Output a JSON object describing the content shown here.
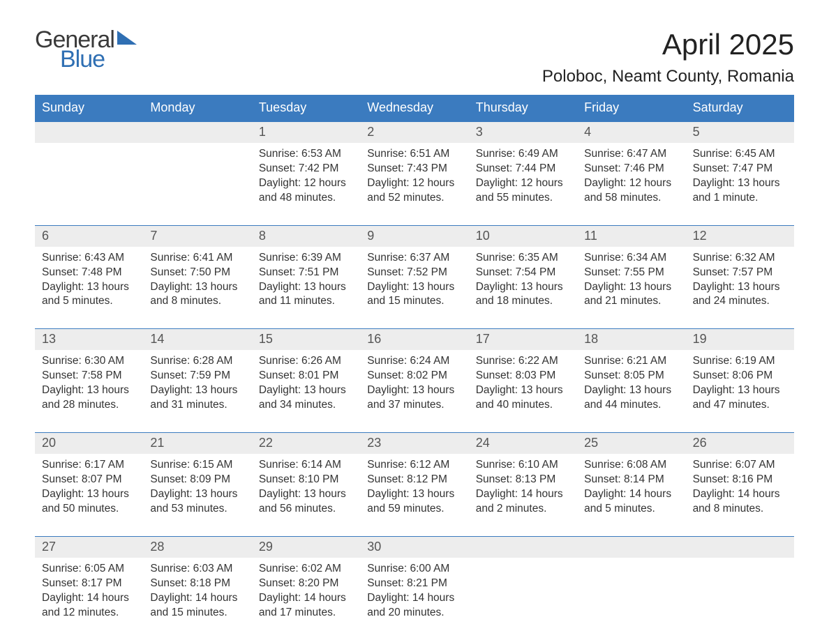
{
  "logo": {
    "line1": "General",
    "line2": "Blue",
    "triangle_color": "#2f6fb3"
  },
  "title": "April 2025",
  "location": "Poloboc, Neamt County, Romania",
  "colors": {
    "header_bg": "#3b7bbf",
    "header_text": "#ffffff",
    "daynum_bg": "#ededed",
    "week_border": "#3b7bbf",
    "body_text": "#333333",
    "title_text": "#222222"
  },
  "weekdays": [
    "Sunday",
    "Monday",
    "Tuesday",
    "Wednesday",
    "Thursday",
    "Friday",
    "Saturday"
  ],
  "weeks": [
    {
      "days": [
        {
          "num": "",
          "sunrise": "",
          "sunset": "",
          "daylight": ""
        },
        {
          "num": "",
          "sunrise": "",
          "sunset": "",
          "daylight": ""
        },
        {
          "num": "1",
          "sunrise": "Sunrise: 6:53 AM",
          "sunset": "Sunset: 7:42 PM",
          "daylight": "Daylight: 12 hours and 48 minutes."
        },
        {
          "num": "2",
          "sunrise": "Sunrise: 6:51 AM",
          "sunset": "Sunset: 7:43 PM",
          "daylight": "Daylight: 12 hours and 52 minutes."
        },
        {
          "num": "3",
          "sunrise": "Sunrise: 6:49 AM",
          "sunset": "Sunset: 7:44 PM",
          "daylight": "Daylight: 12 hours and 55 minutes."
        },
        {
          "num": "4",
          "sunrise": "Sunrise: 6:47 AM",
          "sunset": "Sunset: 7:46 PM",
          "daylight": "Daylight: 12 hours and 58 minutes."
        },
        {
          "num": "5",
          "sunrise": "Sunrise: 6:45 AM",
          "sunset": "Sunset: 7:47 PM",
          "daylight": "Daylight: 13 hours and 1 minute."
        }
      ]
    },
    {
      "days": [
        {
          "num": "6",
          "sunrise": "Sunrise: 6:43 AM",
          "sunset": "Sunset: 7:48 PM",
          "daylight": "Daylight: 13 hours and 5 minutes."
        },
        {
          "num": "7",
          "sunrise": "Sunrise: 6:41 AM",
          "sunset": "Sunset: 7:50 PM",
          "daylight": "Daylight: 13 hours and 8 minutes."
        },
        {
          "num": "8",
          "sunrise": "Sunrise: 6:39 AM",
          "sunset": "Sunset: 7:51 PM",
          "daylight": "Daylight: 13 hours and 11 minutes."
        },
        {
          "num": "9",
          "sunrise": "Sunrise: 6:37 AM",
          "sunset": "Sunset: 7:52 PM",
          "daylight": "Daylight: 13 hours and 15 minutes."
        },
        {
          "num": "10",
          "sunrise": "Sunrise: 6:35 AM",
          "sunset": "Sunset: 7:54 PM",
          "daylight": "Daylight: 13 hours and 18 minutes."
        },
        {
          "num": "11",
          "sunrise": "Sunrise: 6:34 AM",
          "sunset": "Sunset: 7:55 PM",
          "daylight": "Daylight: 13 hours and 21 minutes."
        },
        {
          "num": "12",
          "sunrise": "Sunrise: 6:32 AM",
          "sunset": "Sunset: 7:57 PM",
          "daylight": "Daylight: 13 hours and 24 minutes."
        }
      ]
    },
    {
      "days": [
        {
          "num": "13",
          "sunrise": "Sunrise: 6:30 AM",
          "sunset": "Sunset: 7:58 PM",
          "daylight": "Daylight: 13 hours and 28 minutes."
        },
        {
          "num": "14",
          "sunrise": "Sunrise: 6:28 AM",
          "sunset": "Sunset: 7:59 PM",
          "daylight": "Daylight: 13 hours and 31 minutes."
        },
        {
          "num": "15",
          "sunrise": "Sunrise: 6:26 AM",
          "sunset": "Sunset: 8:01 PM",
          "daylight": "Daylight: 13 hours and 34 minutes."
        },
        {
          "num": "16",
          "sunrise": "Sunrise: 6:24 AM",
          "sunset": "Sunset: 8:02 PM",
          "daylight": "Daylight: 13 hours and 37 minutes."
        },
        {
          "num": "17",
          "sunrise": "Sunrise: 6:22 AM",
          "sunset": "Sunset: 8:03 PM",
          "daylight": "Daylight: 13 hours and 40 minutes."
        },
        {
          "num": "18",
          "sunrise": "Sunrise: 6:21 AM",
          "sunset": "Sunset: 8:05 PM",
          "daylight": "Daylight: 13 hours and 44 minutes."
        },
        {
          "num": "19",
          "sunrise": "Sunrise: 6:19 AM",
          "sunset": "Sunset: 8:06 PM",
          "daylight": "Daylight: 13 hours and 47 minutes."
        }
      ]
    },
    {
      "days": [
        {
          "num": "20",
          "sunrise": "Sunrise: 6:17 AM",
          "sunset": "Sunset: 8:07 PM",
          "daylight": "Daylight: 13 hours and 50 minutes."
        },
        {
          "num": "21",
          "sunrise": "Sunrise: 6:15 AM",
          "sunset": "Sunset: 8:09 PM",
          "daylight": "Daylight: 13 hours and 53 minutes."
        },
        {
          "num": "22",
          "sunrise": "Sunrise: 6:14 AM",
          "sunset": "Sunset: 8:10 PM",
          "daylight": "Daylight: 13 hours and 56 minutes."
        },
        {
          "num": "23",
          "sunrise": "Sunrise: 6:12 AM",
          "sunset": "Sunset: 8:12 PM",
          "daylight": "Daylight: 13 hours and 59 minutes."
        },
        {
          "num": "24",
          "sunrise": "Sunrise: 6:10 AM",
          "sunset": "Sunset: 8:13 PM",
          "daylight": "Daylight: 14 hours and 2 minutes."
        },
        {
          "num": "25",
          "sunrise": "Sunrise: 6:08 AM",
          "sunset": "Sunset: 8:14 PM",
          "daylight": "Daylight: 14 hours and 5 minutes."
        },
        {
          "num": "26",
          "sunrise": "Sunrise: 6:07 AM",
          "sunset": "Sunset: 8:16 PM",
          "daylight": "Daylight: 14 hours and 8 minutes."
        }
      ]
    },
    {
      "days": [
        {
          "num": "27",
          "sunrise": "Sunrise: 6:05 AM",
          "sunset": "Sunset: 8:17 PM",
          "daylight": "Daylight: 14 hours and 12 minutes."
        },
        {
          "num": "28",
          "sunrise": "Sunrise: 6:03 AM",
          "sunset": "Sunset: 8:18 PM",
          "daylight": "Daylight: 14 hours and 15 minutes."
        },
        {
          "num": "29",
          "sunrise": "Sunrise: 6:02 AM",
          "sunset": "Sunset: 8:20 PM",
          "daylight": "Daylight: 14 hours and 17 minutes."
        },
        {
          "num": "30",
          "sunrise": "Sunrise: 6:00 AM",
          "sunset": "Sunset: 8:21 PM",
          "daylight": "Daylight: 14 hours and 20 minutes."
        },
        {
          "num": "",
          "sunrise": "",
          "sunset": "",
          "daylight": ""
        },
        {
          "num": "",
          "sunrise": "",
          "sunset": "",
          "daylight": ""
        },
        {
          "num": "",
          "sunrise": "",
          "sunset": "",
          "daylight": ""
        }
      ]
    }
  ]
}
